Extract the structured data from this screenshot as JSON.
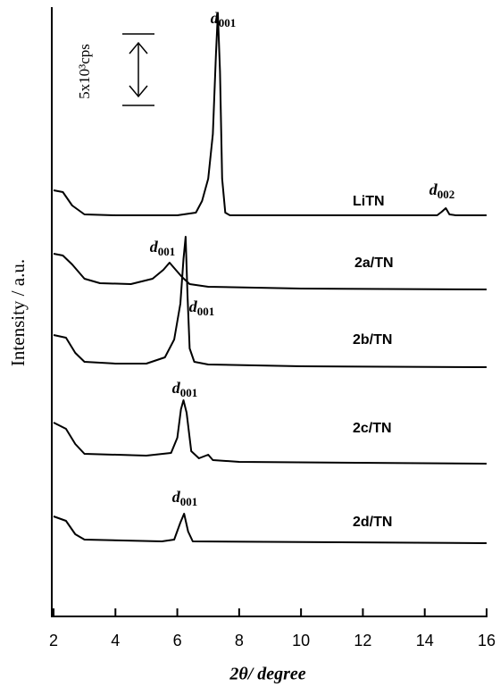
{
  "chart_data": {
    "type": "line",
    "xlabel": "2θ/ degree",
    "ylabel": "Intensity / a.u.",
    "xlim": [
      2,
      16
    ],
    "xticks": [
      2,
      4,
      6,
      8,
      10,
      12,
      14,
      16
    ],
    "ylim": [
      0,
      42625
    ],
    "color": "#000000",
    "scale_bar": {
      "label": "5x10³cps",
      "value": 5000
    },
    "series": [
      {
        "name": "LiTN",
        "x": [
          2.0,
          2.3,
          2.6,
          3.0,
          4.0,
          5.0,
          6.0,
          6.6,
          6.8,
          7.0,
          7.15,
          7.25,
          7.31,
          7.38,
          7.45,
          7.55,
          7.7,
          10,
          14.4,
          14.55,
          14.68,
          14.8,
          15,
          16
        ],
        "values": [
          29810,
          29690,
          28750,
          28125,
          28060,
          28060,
          28060,
          28250,
          29060,
          30625,
          33750,
          39375,
          42190,
          38125,
          30625,
          28250,
          28060,
          28060,
          28060,
          28310,
          28560,
          28125,
          28060,
          28060
        ]
      },
      {
        "name": "2a/TN",
        "x": [
          2.0,
          2.3,
          2.6,
          3.0,
          3.5,
          4.5,
          5.2,
          5.55,
          5.75,
          5.95,
          6.15,
          6.4,
          7.0,
          10,
          16
        ],
        "values": [
          25375,
          25250,
          24625,
          23625,
          23310,
          23250,
          23625,
          24250,
          24750,
          24250,
          23750,
          23250,
          23060,
          22940,
          22875
        ]
      },
      {
        "name": "2b/TN",
        "x": [
          2.0,
          2.4,
          2.7,
          3.0,
          4.0,
          5.0,
          5.6,
          5.9,
          6.1,
          6.2,
          6.27,
          6.33,
          6.4,
          6.55,
          7.0,
          10,
          16
        ],
        "values": [
          19690,
          19500,
          18440,
          17810,
          17690,
          17690,
          18125,
          19375,
          21875,
          25000,
          26560,
          22500,
          18750,
          17810,
          17625,
          17500,
          17440
        ]
      },
      {
        "name": "2c/TN",
        "x": [
          2.0,
          2.4,
          2.7,
          3.0,
          5.0,
          5.8,
          6.0,
          6.12,
          6.2,
          6.3,
          6.45,
          6.7,
          7.0,
          7.15,
          8,
          16
        ],
        "values": [
          13560,
          13125,
          12060,
          11375,
          11250,
          11440,
          12500,
          14500,
          15125,
          14250,
          11560,
          11060,
          11310,
          10940,
          10810,
          10690
        ]
      },
      {
        "name": "2d/TN",
        "x": [
          2.0,
          2.4,
          2.7,
          3.0,
          5.5,
          5.9,
          6.1,
          6.22,
          6.35,
          6.5,
          16
        ],
        "values": [
          7000,
          6690,
          5750,
          5375,
          5250,
          5375,
          6560,
          7190,
          5940,
          5250,
          5125
        ]
      }
    ],
    "annotations": [
      {
        "text": "d",
        "sub": "001"
      },
      {
        "text": "d",
        "sub": "002"
      },
      {
        "text": "d",
        "sub": "001"
      },
      {
        "text": "d",
        "sub": "001"
      },
      {
        "text": "d",
        "sub": "001"
      },
      {
        "text": "d",
        "sub": "001"
      }
    ]
  }
}
